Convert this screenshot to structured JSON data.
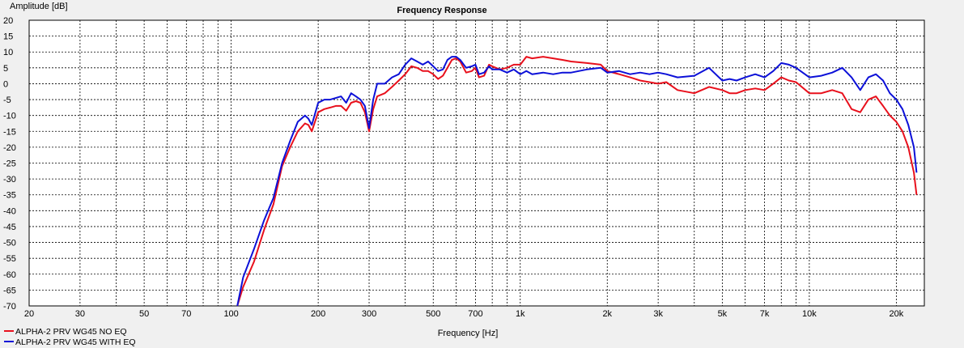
{
  "chart_data": {
    "type": "line",
    "title": "Frequency Response",
    "xlabel": "Frequency [Hz]",
    "ylabel": "Amplitude [dB]",
    "x_scale": "log",
    "xlim": [
      20,
      25000
    ],
    "ylim": [
      -70,
      20
    ],
    "y_ticks": [
      20,
      15,
      10,
      5,
      0,
      -5,
      -10,
      -15,
      -20,
      -25,
      -30,
      -35,
      -40,
      -45,
      -50,
      -55,
      -60,
      -65,
      -70
    ],
    "x_tick_labels": [
      {
        "value": 20,
        "label": "20"
      },
      {
        "value": 30,
        "label": "30"
      },
      {
        "value": 50,
        "label": "50"
      },
      {
        "value": 70,
        "label": "70"
      },
      {
        "value": 100,
        "label": "100"
      },
      {
        "value": 200,
        "label": "200"
      },
      {
        "value": 300,
        "label": "300"
      },
      {
        "value": 500,
        "label": "500"
      },
      {
        "value": 700,
        "label": "700"
      },
      {
        "value": 1000,
        "label": "1k"
      },
      {
        "value": 2000,
        "label": "2k"
      },
      {
        "value": 3000,
        "label": "3k"
      },
      {
        "value": 5000,
        "label": "5k"
      },
      {
        "value": 7000,
        "label": "7k"
      },
      {
        "value": 10000,
        "label": "10k"
      },
      {
        "value": 20000,
        "label": "20k"
      }
    ],
    "grid": true,
    "legend_position": "bottom-left",
    "series": [
      {
        "name": "ALPHA-2 PRV WG45 NO EQ",
        "color": "#e8101c",
        "points": [
          [
            105,
            -70
          ],
          [
            110,
            -64
          ],
          [
            120,
            -56
          ],
          [
            130,
            -46
          ],
          [
            140,
            -38
          ],
          [
            150,
            -26
          ],
          [
            160,
            -20
          ],
          [
            170,
            -15
          ],
          [
            180,
            -12.5
          ],
          [
            185,
            -13
          ],
          [
            190,
            -15
          ],
          [
            200,
            -9
          ],
          [
            210,
            -8
          ],
          [
            220,
            -7.5
          ],
          [
            230,
            -7
          ],
          [
            240,
            -7
          ],
          [
            250,
            -8.5
          ],
          [
            260,
            -6
          ],
          [
            270,
            -5.5
          ],
          [
            280,
            -6
          ],
          [
            290,
            -9
          ],
          [
            300,
            -15
          ],
          [
            310,
            -8
          ],
          [
            320,
            -4
          ],
          [
            340,
            -3
          ],
          [
            360,
            -1
          ],
          [
            380,
            1
          ],
          [
            400,
            3
          ],
          [
            420,
            5.5
          ],
          [
            440,
            5
          ],
          [
            460,
            4
          ],
          [
            480,
            4
          ],
          [
            500,
            3
          ],
          [
            520,
            1.5
          ],
          [
            540,
            2.5
          ],
          [
            560,
            5
          ],
          [
            580,
            7.5
          ],
          [
            600,
            8
          ],
          [
            620,
            7
          ],
          [
            650,
            3.5
          ],
          [
            680,
            4
          ],
          [
            700,
            5
          ],
          [
            720,
            2
          ],
          [
            750,
            2.5
          ],
          [
            780,
            6
          ],
          [
            800,
            5.5
          ],
          [
            850,
            4.5
          ],
          [
            900,
            5
          ],
          [
            950,
            6
          ],
          [
            1000,
            6
          ],
          [
            1050,
            8.5
          ],
          [
            1100,
            8
          ],
          [
            1200,
            8.5
          ],
          [
            1300,
            8
          ],
          [
            1400,
            7.5
          ],
          [
            1500,
            7
          ],
          [
            1700,
            6.5
          ],
          [
            1900,
            6
          ],
          [
            2000,
            4
          ],
          [
            2200,
            3
          ],
          [
            2400,
            2
          ],
          [
            2600,
            1
          ],
          [
            2800,
            0.5
          ],
          [
            3000,
            0
          ],
          [
            3200,
            0.5
          ],
          [
            3500,
            -2
          ],
          [
            4000,
            -3
          ],
          [
            4500,
            -1
          ],
          [
            5000,
            -2
          ],
          [
            5300,
            -3
          ],
          [
            5600,
            -3
          ],
          [
            6000,
            -2
          ],
          [
            6500,
            -1.5
          ],
          [
            7000,
            -2
          ],
          [
            7500,
            0
          ],
          [
            8000,
            2
          ],
          [
            8500,
            1
          ],
          [
            9000,
            0.5
          ],
          [
            10000,
            -3
          ],
          [
            11000,
            -3
          ],
          [
            12000,
            -2
          ],
          [
            13000,
            -3
          ],
          [
            14000,
            -8
          ],
          [
            15000,
            -9
          ],
          [
            16000,
            -5
          ],
          [
            17000,
            -4
          ],
          [
            18000,
            -7
          ],
          [
            19000,
            -10
          ],
          [
            20000,
            -12
          ],
          [
            21000,
            -15
          ],
          [
            22000,
            -20
          ],
          [
            23000,
            -28
          ],
          [
            23500,
            -35
          ]
        ]
      },
      {
        "name": "ALPHA-2 PRV WG45 WITH EQ",
        "color": "#0c10d8",
        "points": [
          [
            105,
            -70
          ],
          [
            110,
            -61
          ],
          [
            120,
            -52
          ],
          [
            130,
            -43
          ],
          [
            140,
            -36
          ],
          [
            150,
            -25
          ],
          [
            160,
            -18
          ],
          [
            170,
            -12
          ],
          [
            180,
            -10
          ],
          [
            185,
            -11
          ],
          [
            190,
            -13
          ],
          [
            200,
            -6
          ],
          [
            210,
            -5
          ],
          [
            220,
            -5
          ],
          [
            230,
            -4.5
          ],
          [
            240,
            -4
          ],
          [
            250,
            -6
          ],
          [
            260,
            -3
          ],
          [
            270,
            -4
          ],
          [
            280,
            -5
          ],
          [
            290,
            -7
          ],
          [
            300,
            -14
          ],
          [
            310,
            -5
          ],
          [
            320,
            0
          ],
          [
            340,
            0
          ],
          [
            360,
            2
          ],
          [
            380,
            3
          ],
          [
            400,
            6
          ],
          [
            420,
            8
          ],
          [
            440,
            7
          ],
          [
            460,
            6
          ],
          [
            480,
            7
          ],
          [
            500,
            5.5
          ],
          [
            520,
            4
          ],
          [
            540,
            4.5
          ],
          [
            560,
            7.5
          ],
          [
            580,
            8.5
          ],
          [
            600,
            8.5
          ],
          [
            620,
            7.5
          ],
          [
            650,
            5
          ],
          [
            680,
            5.5
          ],
          [
            700,
            6
          ],
          [
            720,
            3
          ],
          [
            750,
            3.5
          ],
          [
            780,
            5.5
          ],
          [
            800,
            4.5
          ],
          [
            850,
            4.5
          ],
          [
            900,
            3.5
          ],
          [
            950,
            4.5
          ],
          [
            1000,
            3
          ],
          [
            1050,
            4
          ],
          [
            1100,
            3
          ],
          [
            1200,
            3.5
          ],
          [
            1300,
            3
          ],
          [
            1400,
            3.5
          ],
          [
            1500,
            3.5
          ],
          [
            1700,
            4.5
          ],
          [
            1900,
            5
          ],
          [
            2000,
            3.5
          ],
          [
            2200,
            4
          ],
          [
            2400,
            3
          ],
          [
            2600,
            3.5
          ],
          [
            2800,
            3
          ],
          [
            3000,
            3.5
          ],
          [
            3200,
            3
          ],
          [
            3500,
            2
          ],
          [
            4000,
            2.5
          ],
          [
            4500,
            5
          ],
          [
            5000,
            1
          ],
          [
            5300,
            1.5
          ],
          [
            5600,
            1
          ],
          [
            6000,
            2
          ],
          [
            6500,
            3
          ],
          [
            7000,
            2
          ],
          [
            7500,
            4
          ],
          [
            8000,
            6.5
          ],
          [
            8500,
            6
          ],
          [
            9000,
            5
          ],
          [
            10000,
            2
          ],
          [
            11000,
            2.5
          ],
          [
            12000,
            3.5
          ],
          [
            13000,
            5
          ],
          [
            14000,
            2
          ],
          [
            15000,
            -2
          ],
          [
            16000,
            2
          ],
          [
            17000,
            3
          ],
          [
            18000,
            1
          ],
          [
            19000,
            -3
          ],
          [
            20000,
            -5
          ],
          [
            21000,
            -8
          ],
          [
            22000,
            -13
          ],
          [
            23000,
            -20
          ],
          [
            23500,
            -28
          ]
        ]
      }
    ]
  }
}
